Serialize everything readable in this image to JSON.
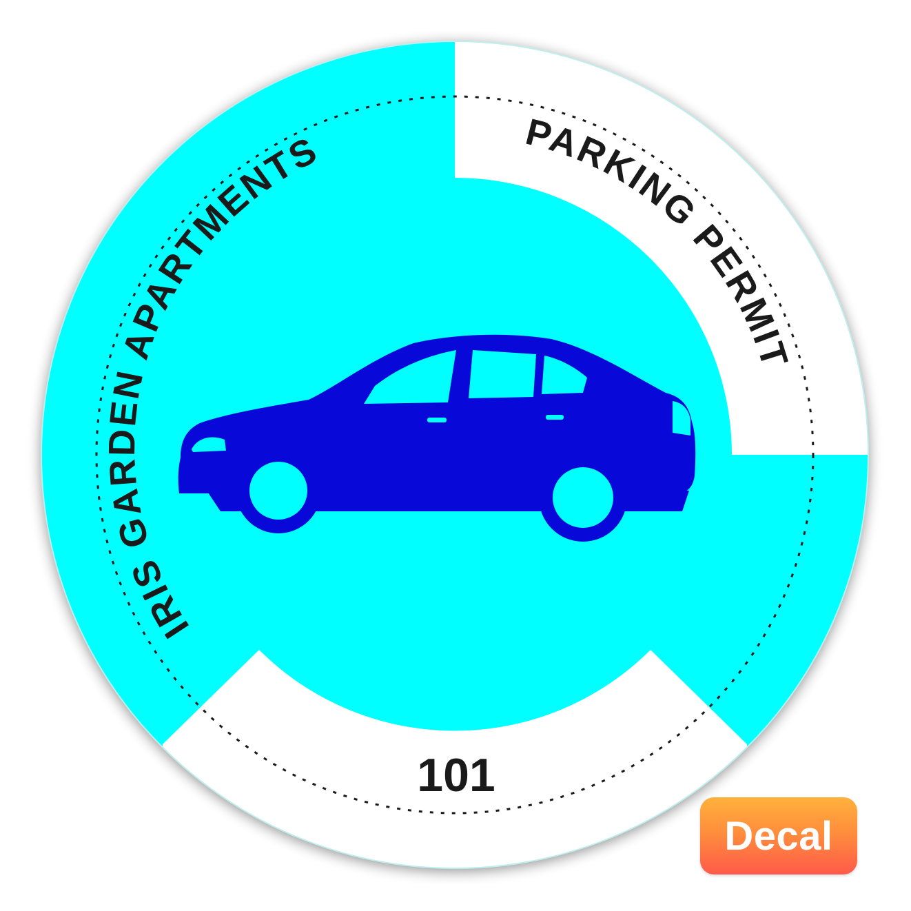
{
  "sticker": {
    "property_name": "IRIS GARDEN APARTMENTS",
    "permit_label": "PARKING PERMIT",
    "permit_number": "101",
    "icon": "car-icon"
  },
  "badge": {
    "label": "Decal"
  },
  "colors": {
    "background": "#00ffff",
    "car": "#0808d8",
    "panel": "#ffffff",
    "text": "#1a1a1a",
    "badge_top": "#ffb13b",
    "badge_bottom": "#ff5a4a"
  }
}
